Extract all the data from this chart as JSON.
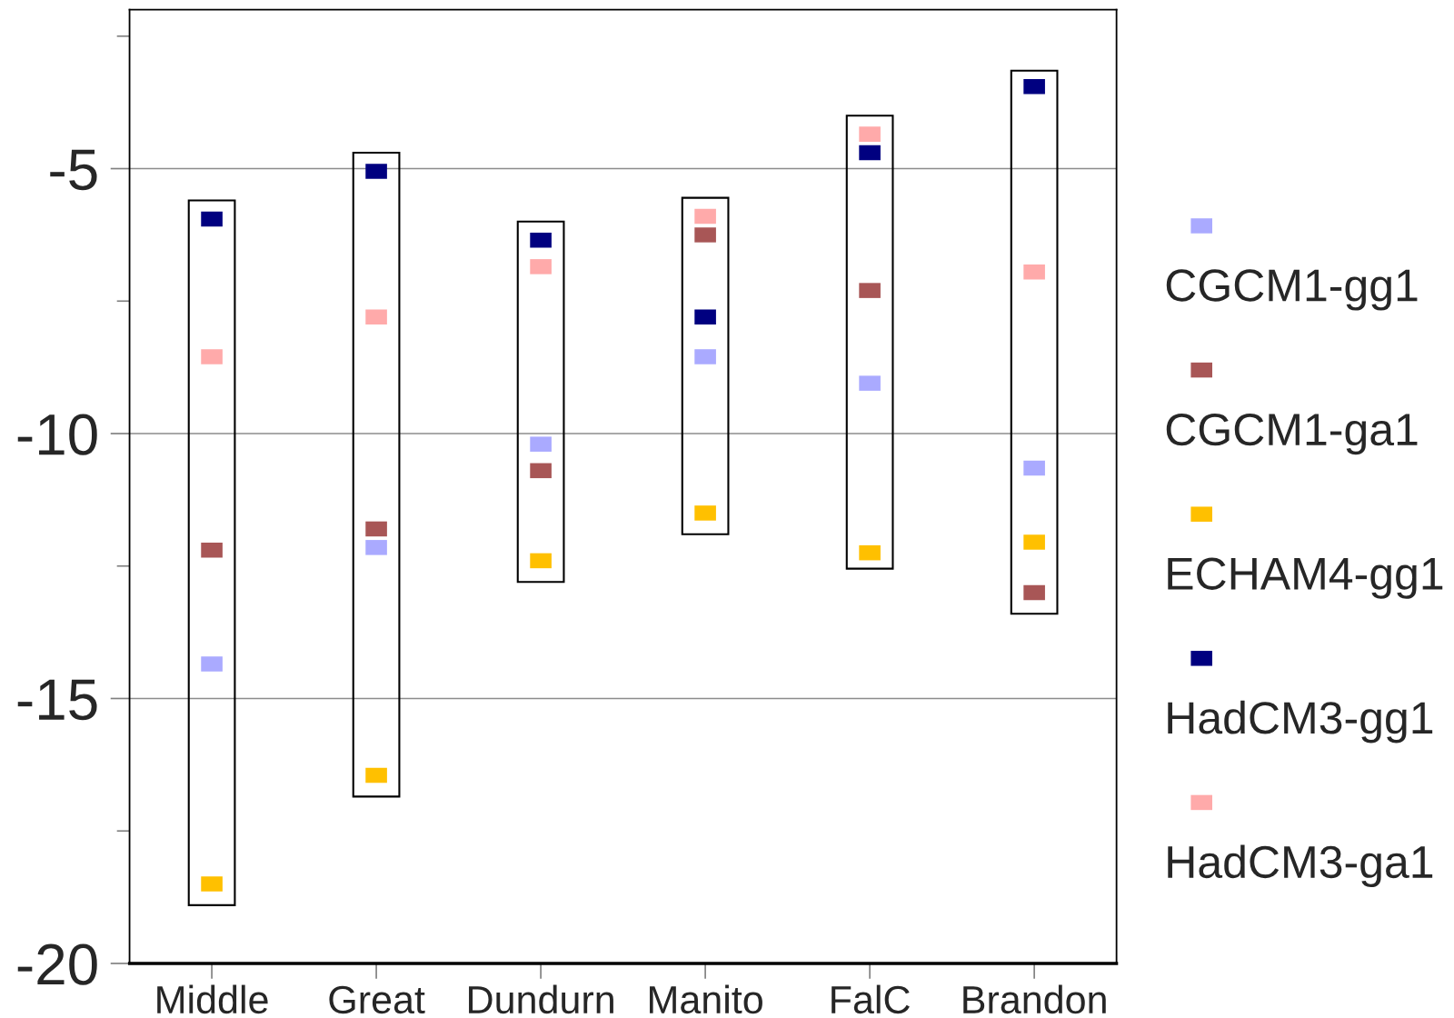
{
  "chart_data": {
    "type": "scatter",
    "categories": [
      "Middle",
      "Great",
      "Dundurn",
      "Manito",
      "FalC",
      "Brandon"
    ],
    "series": [
      {
        "type": "bar",
        "color": "#000000",
        "base": [
          -18.9,
          -16.85,
          -12.8,
          -11.9,
          -12.55,
          -13.4
        ],
        "values": [
          13.3,
          12.15,
          6.8,
          6.35,
          8.55,
          10.25
        ]
      },
      {
        "name": "CGCM1-gg1",
        "color": "#aaaaff",
        "values": [
          -14.35,
          -12.15,
          -10.2,
          -8.55,
          -9.05,
          -10.65
        ]
      },
      {
        "name": "CGCM1-ga1",
        "color": "#a85656",
        "values": [
          -12.2,
          -11.8,
          -10.7,
          -6.25,
          -7.3,
          -13.0
        ]
      },
      {
        "name": "ECHAM4-gg1",
        "color": "#ffc000",
        "values": [
          -18.5,
          -16.45,
          -12.4,
          -11.5,
          -12.25,
          -12.05
        ]
      },
      {
        "name": "HadCM3-gg1",
        "color": "#000080",
        "values": [
          -5.95,
          -5.05,
          -6.35,
          -7.8,
          -4.7,
          -3.45
        ]
      },
      {
        "name": "HadCM3-ga1",
        "color": "#ffaaaa",
        "values": [
          -8.55,
          -7.8,
          -6.85,
          -5.9,
          -4.35,
          -6.95
        ]
      }
    ],
    "ylim": [
      -20,
      -2
    ],
    "yticks": [
      -20,
      {
        "value": -17.5,
        "label": null
      },
      -15,
      {
        "value": -12.5,
        "label": null
      },
      -10,
      {
        "value": -7.5,
        "label": null
      },
      -5,
      {
        "value": -2.5,
        "label": null
      }
    ],
    "grid": "y",
    "legend": "right",
    "marker": "square"
  }
}
